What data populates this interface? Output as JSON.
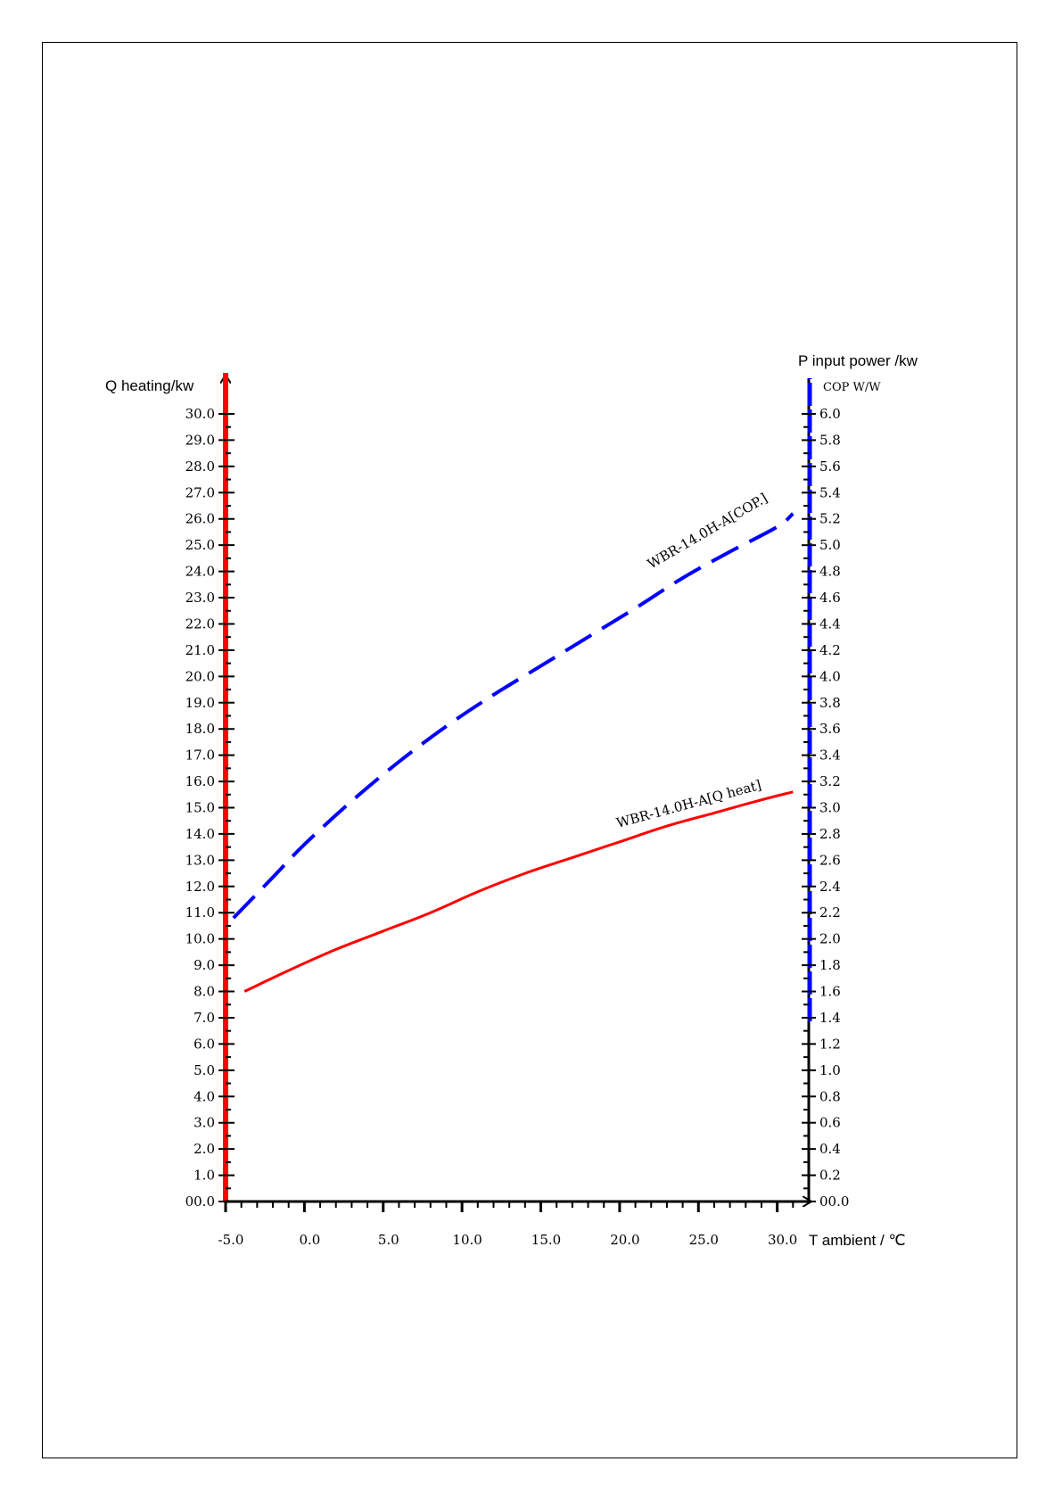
{
  "chart_data": {
    "type": "line",
    "x_axis": {
      "title": "T ambient / ℃",
      "range": [
        -5.0,
        32.0
      ],
      "ticks": [
        "-5.0",
        "0.0",
        "5.0",
        "10.0",
        "15.0",
        "20.0",
        "25.0",
        "30.0"
      ],
      "tick_values": [
        -5,
        0,
        5,
        10,
        15,
        20,
        25,
        30
      ]
    },
    "y_left": {
      "title": "Q heating/kw",
      "range": [
        0,
        30
      ],
      "ticks": [
        "00.0",
        "1.0",
        "2.0",
        "3.0",
        "4.0",
        "5.0",
        "6.0",
        "7.0",
        "8.0",
        "9.0",
        "10.0",
        "11.0",
        "12.0",
        "13.0",
        "14.0",
        "15.0",
        "16.0",
        "17.0",
        "18.0",
        "19.0",
        "20.0",
        "21.0",
        "22.0",
        "23.0",
        "24.0",
        "25.0",
        "26.0",
        "27.0",
        "28.0",
        "29.0",
        "30.0"
      ],
      "color": "#ff0000"
    },
    "y_right": {
      "title": "P input power /kw",
      "unit": "COP W/W",
      "range": [
        0,
        6
      ],
      "ticks": [
        "00.0",
        "0.2",
        "0.4",
        "0.6",
        "0.8",
        "1.0",
        "1.2",
        "1.4",
        "1.6",
        "1.8",
        "2.0",
        "2.2",
        "2.4",
        "2.6",
        "2.8",
        "3.0",
        "3.2",
        "3.4",
        "3.6",
        "3.8",
        "4.0",
        "4.2",
        "4.4",
        "4.6",
        "4.8",
        "5.0",
        "5.2",
        "5.4",
        "5.6",
        "5.8",
        "6.0"
      ],
      "color": "#0000ff"
    },
    "series": [
      {
        "name": "WBR-14.0H-A[Q heat]",
        "axis": "left",
        "color": "#ff0000",
        "style": "solid",
        "x": [
          -3.8,
          -1,
          2,
          5,
          8,
          11,
          14,
          17,
          20,
          23,
          26,
          29,
          31
        ],
        "y": [
          8.0,
          8.8,
          9.6,
          10.3,
          11.0,
          11.8,
          12.5,
          13.1,
          13.7,
          14.3,
          14.8,
          15.3,
          15.6
        ]
      },
      {
        "name": "WBR-14.0H-A[COP.]",
        "axis": "right",
        "color": "#0000ff",
        "style": "dashed",
        "x": [
          -4.5,
          -2,
          0,
          3,
          6,
          9,
          12,
          15,
          18,
          21,
          24,
          27,
          30,
          31
        ],
        "y": [
          2.16,
          2.47,
          2.72,
          3.05,
          3.35,
          3.62,
          3.86,
          4.08,
          4.3,
          4.52,
          4.75,
          4.95,
          5.14,
          5.24
        ]
      }
    ]
  }
}
